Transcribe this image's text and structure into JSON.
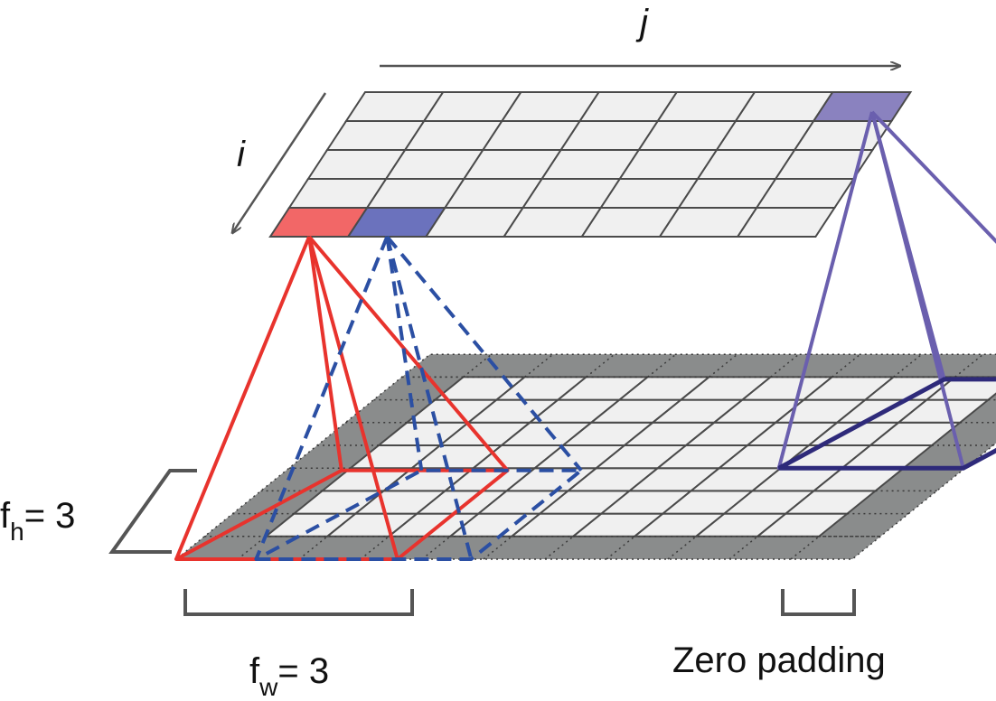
{
  "labels": {
    "j": "j",
    "i": "i",
    "fh_main": "f",
    "fh_sub": "h",
    "fh_value": "= 3",
    "fw_main": "f",
    "fw_sub": "w",
    "fw_value": "= 3",
    "zero_padding": "Zero padding"
  },
  "output_layer": {
    "rows": 5,
    "cols": 7
  },
  "input_layer": {
    "rows": 7,
    "cols": 9,
    "padded_rows": 9,
    "padded_cols": 11
  },
  "filter": {
    "height": 3,
    "width": 3
  },
  "colors": {
    "cell_fill": "#f0f0f0",
    "grid_line": "#4a4a4a",
    "padding_fill": "#8a8c8c",
    "red": "#e8332d",
    "red_cell": "#f26767",
    "blue": "#2b4fa3",
    "blue_cell": "#6b72bd",
    "purple": "#6a5fae",
    "purple_cell": "#8a82bf",
    "dark_blue": "#2e2a7a",
    "bracket": "#555555",
    "axis_arrow": "#555555"
  }
}
